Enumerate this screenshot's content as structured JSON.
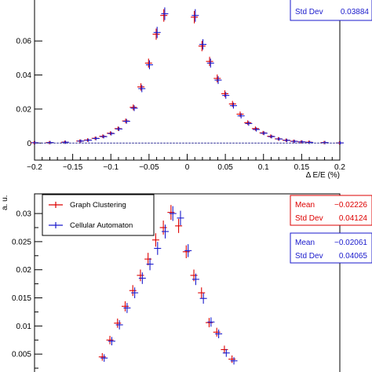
{
  "colors": {
    "series_a": "#dd0000",
    "series_b": "#1a1acc",
    "axis": "#000000"
  },
  "chart_data": [
    {
      "type": "scatter",
      "xlabel": "Δ E/E (%)",
      "ylabel": "",
      "xlim": [
        -0.2,
        0.2
      ],
      "ylim": [
        -0.01,
        0.085
      ],
      "x_ticks": [
        -0.2,
        -0.15,
        -0.1,
        -0.05,
        0,
        0.05,
        0.1,
        0.15,
        0.2
      ],
      "x_tick_labels": [
        "−0.2",
        "−0.15",
        "−0.1",
        "−0.05",
        "0",
        "0.05",
        "0.1",
        "0.15",
        "0.2"
      ],
      "y_ticks": [
        0,
        0.02,
        0.04,
        0.06
      ],
      "y_tick_labels": [
        "0",
        "0.02",
        "0.04",
        "0.06"
      ],
      "grid": false,
      "stats": [
        {
          "label": "Std Dev",
          "value": "0.03884",
          "color": "#1a1acc"
        }
      ],
      "series": [
        {
          "x": [
            -0.2,
            -0.18,
            -0.16,
            -0.14,
            -0.13,
            -0.12,
            -0.11,
            -0.1,
            -0.09,
            -0.08,
            -0.07,
            -0.06,
            -0.05,
            -0.04,
            -0.03,
            0.01,
            0.02,
            0.03,
            0.04,
            0.05,
            0.06,
            0.07,
            0.08,
            0.09,
            0.1,
            0.11,
            0.12,
            0.13,
            0.14,
            0.15,
            0.16,
            0.18,
            0.2
          ],
          "y": [
            0.0002,
            0.0003,
            0.0005,
            0.0012,
            0.0018,
            0.0028,
            0.004,
            0.0058,
            0.0085,
            0.013,
            0.021,
            0.033,
            0.047,
            0.064,
            0.075,
            0.074,
            0.057,
            0.048,
            0.038,
            0.029,
            0.023,
            0.017,
            0.012,
            0.0085,
            0.006,
            0.004,
            0.0025,
            0.0017,
            0.0011,
            0.0007,
            0.0005,
            0.0003,
            0.0001
          ]
        },
        {
          "x": [
            -0.2,
            -0.18,
            -0.16,
            -0.14,
            -0.13,
            -0.12,
            -0.11,
            -0.1,
            -0.09,
            -0.08,
            -0.07,
            -0.06,
            -0.05,
            -0.04,
            -0.03,
            0.01,
            0.02,
            0.03,
            0.04,
            0.05,
            0.06,
            0.07,
            0.08,
            0.09,
            0.1,
            0.11,
            0.12,
            0.13,
            0.14,
            0.15,
            0.16,
            0.18,
            0.2
          ],
          "y": [
            0.0002,
            0.0003,
            0.0005,
            0.0012,
            0.0017,
            0.0027,
            0.0038,
            0.0056,
            0.0083,
            0.0128,
            0.0205,
            0.032,
            0.046,
            0.065,
            0.076,
            0.075,
            0.058,
            0.047,
            0.037,
            0.028,
            0.022,
            0.016,
            0.0115,
            0.008,
            0.0058,
            0.0038,
            0.0024,
            0.0016,
            0.001,
            0.0007,
            0.0004,
            0.0003,
            0.0001
          ]
        }
      ]
    },
    {
      "type": "scatter",
      "xlabel": "",
      "ylabel": "a. u.",
      "xlim": [
        -0.2,
        0.2
      ],
      "ylim": [
        0,
        0.0335
      ],
      "y_ticks": [
        0.005,
        0.01,
        0.015,
        0.02,
        0.025,
        0.03
      ],
      "y_tick_labels": [
        "0.005",
        "0.01",
        "0.015",
        "0.02",
        "0.025",
        "0.03"
      ],
      "grid": false,
      "legend": [
        {
          "name": "Graph Clustering",
          "color": "#dd0000"
        },
        {
          "name": "Cellular Automaton",
          "color": "#1a1acc"
        }
      ],
      "legend_placement": "top-left",
      "stats_boxes": [
        {
          "color": "#dd0000",
          "rows": [
            {
              "label": "Mean",
              "value": "−0.02226"
            },
            {
              "label": "Std Dev",
              "value": "0.04124"
            }
          ]
        },
        {
          "color": "#1a1acc",
          "rows": [
            {
              "label": "Mean",
              "value": "−0.02061"
            },
            {
              "label": "Std Dev",
              "value": "0.04065"
            }
          ]
        }
      ],
      "series": [
        {
          "name": "Graph Clustering",
          "x": [
            -0.11,
            -0.1,
            -0.09,
            -0.08,
            -0.07,
            -0.06,
            -0.05,
            -0.04,
            -0.03,
            -0.02,
            -0.01,
            0.0,
            0.01,
            0.02,
            0.03,
            0.04,
            0.05,
            0.06
          ],
          "y": [
            0.0045,
            0.0075,
            0.0105,
            0.0135,
            0.0163,
            0.019,
            0.0219,
            0.0253,
            0.0275,
            0.0302,
            0.0278,
            0.0232,
            0.019,
            0.0159,
            0.0106,
            0.0089,
            0.0058,
            0.0041
          ]
        },
        {
          "name": "Cellular Automaton",
          "x": [
            -0.11,
            -0.1,
            -0.09,
            -0.08,
            -0.07,
            -0.06,
            -0.05,
            -0.04,
            -0.03,
            -0.02,
            -0.01,
            0.0,
            0.01,
            0.02,
            0.03,
            0.04,
            0.05,
            0.06
          ],
          "y": [
            0.0043,
            0.0073,
            0.0102,
            0.0132,
            0.0159,
            0.0185,
            0.021,
            0.0238,
            0.0268,
            0.03,
            0.0292,
            0.0234,
            0.0183,
            0.0149,
            0.0107,
            0.0086,
            0.0052,
            0.0038
          ]
        }
      ]
    }
  ]
}
